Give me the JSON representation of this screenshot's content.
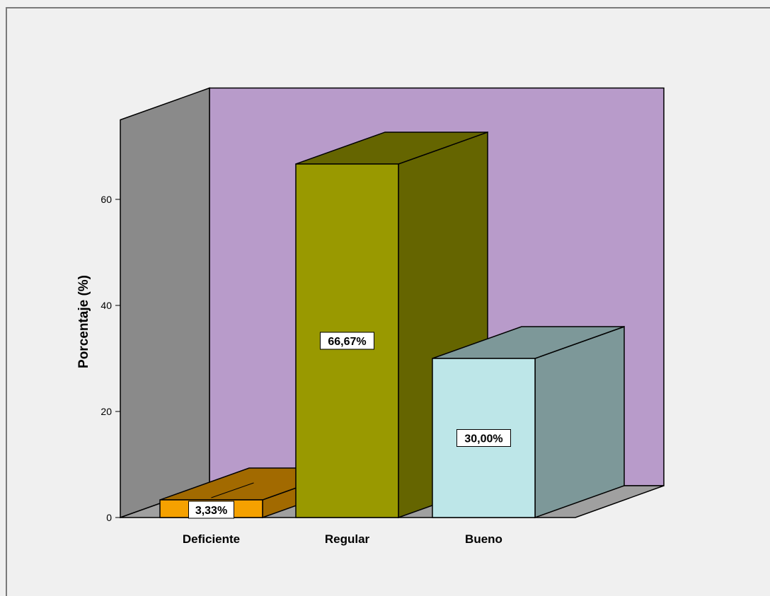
{
  "chart_data": {
    "type": "bar",
    "style": "3d",
    "categories": [
      "Deficiente",
      "Regular",
      "Bueno"
    ],
    "values": [
      3.33,
      66.67,
      30.0
    ],
    "data_labels": [
      "3,33%",
      "66,67%",
      "30,00%"
    ],
    "bar_colors": [
      "#f5a100",
      "#999900",
      "#bde6e8"
    ],
    "ylabel": "Porcentaje (%)",
    "xlabel": "",
    "ylim": [
      0,
      75
    ],
    "yticks": [
      0,
      20,
      40,
      60
    ],
    "grid": false,
    "legend": "none",
    "colors": {
      "back_wall": "#b89bca",
      "side_wall": "#8a8a8a",
      "floor": "#a0a0a0",
      "background": "#f0f0f0"
    }
  }
}
